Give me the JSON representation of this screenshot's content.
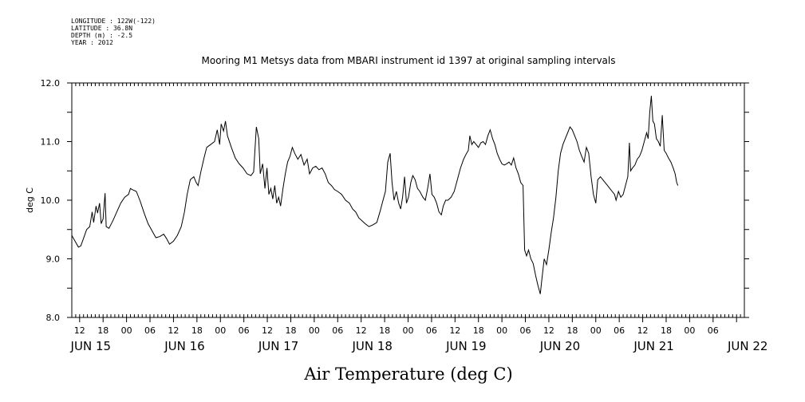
{
  "metadata": [
    "LONGITUDE : 122W(-122)",
    "LATITUDE : 36.8N",
    "DEPTH (m) : -2.5",
    "YEAR : 2012"
  ],
  "chart_data": {
    "type": "line",
    "title": "Mooring M1 Metsys data from MBARI instrument id 1397 at original sampling intervals",
    "xlabel": "Air Temperature (deg C)",
    "ylabel": "deg C",
    "ylim": [
      8.0,
      12.0
    ],
    "yticks": [
      "8.0",
      "9.0",
      "10.0",
      "11.0",
      "12.0"
    ],
    "xlim_hours": [
      346,
      518
    ],
    "hour_ticks": [
      "12",
      "18",
      "00",
      "06",
      "12",
      "18",
      "00",
      "06",
      "12",
      "18",
      "00",
      "06",
      "12",
      "18",
      "00",
      "06",
      "12",
      "18",
      "00",
      "06",
      "12",
      "18",
      "00",
      "06",
      "12",
      "18",
      "00",
      "06"
    ],
    "day_labels": [
      "JUN 15",
      "JUN 16",
      "JUN 17",
      "JUN 18",
      "JUN 19",
      "JUN 20",
      "JUN 21",
      "JUN 22"
    ],
    "grid": false,
    "series": [
      {
        "x_unit": "hours since JUN 1 2012 00:00",
        "color": "#000000",
        "points": [
          [
            346.0,
            9.4
          ],
          [
            347.0,
            9.28
          ],
          [
            347.7,
            9.2
          ],
          [
            348.3,
            9.22
          ],
          [
            349.0,
            9.35
          ],
          [
            349.8,
            9.5
          ],
          [
            350.6,
            9.55
          ],
          [
            351.2,
            9.8
          ],
          [
            351.6,
            9.62
          ],
          [
            352.2,
            9.9
          ],
          [
            352.6,
            9.78
          ],
          [
            353.1,
            9.95
          ],
          [
            353.5,
            9.6
          ],
          [
            354.0,
            9.68
          ],
          [
            354.5,
            10.12
          ],
          [
            354.8,
            9.55
          ],
          [
            355.5,
            9.52
          ],
          [
            356.5,
            9.65
          ],
          [
            357.5,
            9.8
          ],
          [
            358.5,
            9.95
          ],
          [
            359.5,
            10.05
          ],
          [
            360.5,
            10.1
          ],
          [
            361.0,
            10.2
          ],
          [
            361.5,
            10.18
          ],
          [
            362.5,
            10.15
          ],
          [
            363.5,
            9.98
          ],
          [
            364.5,
            9.78
          ],
          [
            365.5,
            9.6
          ],
          [
            366.5,
            9.48
          ],
          [
            367.5,
            9.36
          ],
          [
            368.5,
            9.38
          ],
          [
            369.5,
            9.42
          ],
          [
            370.2,
            9.35
          ],
          [
            371.0,
            9.25
          ],
          [
            372.0,
            9.3
          ],
          [
            373.0,
            9.4
          ],
          [
            374.0,
            9.55
          ],
          [
            374.8,
            9.8
          ],
          [
            375.5,
            10.1
          ],
          [
            376.3,
            10.35
          ],
          [
            377.2,
            10.4
          ],
          [
            377.8,
            10.3
          ],
          [
            378.3,
            10.25
          ],
          [
            379.0,
            10.48
          ],
          [
            379.8,
            10.72
          ],
          [
            380.5,
            10.9
          ],
          [
            381.5,
            10.95
          ],
          [
            382.5,
            11.0
          ],
          [
            383.2,
            11.2
          ],
          [
            383.8,
            10.95
          ],
          [
            384.2,
            11.3
          ],
          [
            384.8,
            11.18
          ],
          [
            385.3,
            11.35
          ],
          [
            385.8,
            11.1
          ],
          [
            386.8,
            10.9
          ],
          [
            387.8,
            10.72
          ],
          [
            388.8,
            10.62
          ],
          [
            389.8,
            10.55
          ],
          [
            390.8,
            10.45
          ],
          [
            391.8,
            10.42
          ],
          [
            392.5,
            10.48
          ],
          [
            393.2,
            11.25
          ],
          [
            393.8,
            11.05
          ],
          [
            394.2,
            10.45
          ],
          [
            394.8,
            10.62
          ],
          [
            395.4,
            10.2
          ],
          [
            395.9,
            10.55
          ],
          [
            396.4,
            10.1
          ],
          [
            396.9,
            10.2
          ],
          [
            397.4,
            10.02
          ],
          [
            397.9,
            10.25
          ],
          [
            398.4,
            9.95
          ],
          [
            398.9,
            10.05
          ],
          [
            399.4,
            9.9
          ],
          [
            400.0,
            10.2
          ],
          [
            400.6,
            10.45
          ],
          [
            401.2,
            10.65
          ],
          [
            401.8,
            10.75
          ],
          [
            402.4,
            10.9
          ],
          [
            403.0,
            10.8
          ],
          [
            403.8,
            10.7
          ],
          [
            404.6,
            10.78
          ],
          [
            405.4,
            10.6
          ],
          [
            406.2,
            10.7
          ],
          [
            406.8,
            10.45
          ],
          [
            407.6,
            10.55
          ],
          [
            408.4,
            10.58
          ],
          [
            409.2,
            10.52
          ],
          [
            410.0,
            10.55
          ],
          [
            410.8,
            10.45
          ],
          [
            411.6,
            10.3
          ],
          [
            412.4,
            10.25
          ],
          [
            413.2,
            10.18
          ],
          [
            414.0,
            10.15
          ],
          [
            415.0,
            10.1
          ],
          [
            416.0,
            10.0
          ],
          [
            417.0,
            9.95
          ],
          [
            417.8,
            9.85
          ],
          [
            418.6,
            9.8
          ],
          [
            419.4,
            9.7
          ],
          [
            420.2,
            9.65
          ],
          [
            421.0,
            9.6
          ],
          [
            422.0,
            9.55
          ],
          [
            423.0,
            9.58
          ],
          [
            424.0,
            9.62
          ],
          [
            424.8,
            9.8
          ],
          [
            425.6,
            10.0
          ],
          [
            426.2,
            10.15
          ],
          [
            426.8,
            10.65
          ],
          [
            427.4,
            10.8
          ],
          [
            427.9,
            10.3
          ],
          [
            428.4,
            10.0
          ],
          [
            429.0,
            10.15
          ],
          [
            429.6,
            9.95
          ],
          [
            430.1,
            9.85
          ],
          [
            430.6,
            10.05
          ],
          [
            431.1,
            10.4
          ],
          [
            431.6,
            9.95
          ],
          [
            432.1,
            10.05
          ],
          [
            432.7,
            10.3
          ],
          [
            433.2,
            10.42
          ],
          [
            433.8,
            10.35
          ],
          [
            434.4,
            10.2
          ],
          [
            435.0,
            10.15
          ],
          [
            435.8,
            10.05
          ],
          [
            436.4,
            10.0
          ],
          [
            437.0,
            10.2
          ],
          [
            437.6,
            10.45
          ],
          [
            438.1,
            10.1
          ],
          [
            438.7,
            10.05
          ],
          [
            439.3,
            9.95
          ],
          [
            439.9,
            9.8
          ],
          [
            440.5,
            9.75
          ],
          [
            441.0,
            9.9
          ],
          [
            441.6,
            10.0
          ],
          [
            442.2,
            10.0
          ],
          [
            443.0,
            10.05
          ],
          [
            443.8,
            10.15
          ],
          [
            444.6,
            10.35
          ],
          [
            445.4,
            10.55
          ],
          [
            446.2,
            10.7
          ],
          [
            446.8,
            10.78
          ],
          [
            447.4,
            10.85
          ],
          [
            447.8,
            11.1
          ],
          [
            448.3,
            10.95
          ],
          [
            448.8,
            11.0
          ],
          [
            449.4,
            10.95
          ],
          [
            450.0,
            10.9
          ],
          [
            450.6,
            10.98
          ],
          [
            451.2,
            11.0
          ],
          [
            451.8,
            10.95
          ],
          [
            452.4,
            11.1
          ],
          [
            453.0,
            11.2
          ],
          [
            453.6,
            11.05
          ],
          [
            454.2,
            10.95
          ],
          [
            454.8,
            10.8
          ],
          [
            455.4,
            10.7
          ],
          [
            456.0,
            10.62
          ],
          [
            456.6,
            10.6
          ],
          [
            457.2,
            10.62
          ],
          [
            457.8,
            10.65
          ],
          [
            458.4,
            10.6
          ],
          [
            459.0,
            10.72
          ],
          [
            459.6,
            10.55
          ],
          [
            460.2,
            10.45
          ],
          [
            460.8,
            10.3
          ],
          [
            461.4,
            10.25
          ],
          [
            461.8,
            9.15
          ],
          [
            462.3,
            9.05
          ],
          [
            462.8,
            9.15
          ],
          [
            463.4,
            9.0
          ],
          [
            464.0,
            8.92
          ],
          [
            464.6,
            8.72
          ],
          [
            465.2,
            8.55
          ],
          [
            465.8,
            8.4
          ],
          [
            466.3,
            8.7
          ],
          [
            466.8,
            9.0
          ],
          [
            467.4,
            8.9
          ],
          [
            468.0,
            9.15
          ],
          [
            468.6,
            9.45
          ],
          [
            469.2,
            9.7
          ],
          [
            469.8,
            10.05
          ],
          [
            470.4,
            10.5
          ],
          [
            471.0,
            10.8
          ],
          [
            471.6,
            10.95
          ],
          [
            472.2,
            11.05
          ],
          [
            472.8,
            11.15
          ],
          [
            473.4,
            11.25
          ],
          [
            474.0,
            11.2
          ],
          [
            474.6,
            11.1
          ],
          [
            475.2,
            11.0
          ],
          [
            475.8,
            10.85
          ],
          [
            476.4,
            10.75
          ],
          [
            477.0,
            10.65
          ],
          [
            477.6,
            10.9
          ],
          [
            478.2,
            10.8
          ],
          [
            478.8,
            10.4
          ],
          [
            479.4,
            10.1
          ],
          [
            480.0,
            9.95
          ],
          [
            480.5,
            10.35
          ],
          [
            481.2,
            10.4
          ],
          [
            481.8,
            10.35
          ],
          [
            482.4,
            10.3
          ],
          [
            483.0,
            10.25
          ],
          [
            483.6,
            10.2
          ],
          [
            484.2,
            10.15
          ],
          [
            484.8,
            10.1
          ],
          [
            485.2,
            10.0
          ],
          [
            485.8,
            10.15
          ],
          [
            486.4,
            10.05
          ],
          [
            487.0,
            10.1
          ],
          [
            487.6,
            10.25
          ],
          [
            488.2,
            10.4
          ],
          [
            488.6,
            10.98
          ],
          [
            488.9,
            10.5
          ],
          [
            489.4,
            10.55
          ],
          [
            490.0,
            10.6
          ],
          [
            490.6,
            10.7
          ],
          [
            491.2,
            10.75
          ],
          [
            491.8,
            10.85
          ],
          [
            492.4,
            11.0
          ],
          [
            493.0,
            11.15
          ],
          [
            493.4,
            11.05
          ],
          [
            493.8,
            11.5
          ],
          [
            494.2,
            11.78
          ],
          [
            494.6,
            11.35
          ],
          [
            495.0,
            11.3
          ],
          [
            495.5,
            11.05
          ],
          [
            496.0,
            11.0
          ],
          [
            496.5,
            10.92
          ],
          [
            497.0,
            11.45
          ],
          [
            497.5,
            10.85
          ],
          [
            498.0,
            10.8
          ],
          [
            498.6,
            10.72
          ],
          [
            499.2,
            10.65
          ],
          [
            499.8,
            10.55
          ],
          [
            500.3,
            10.45
          ],
          [
            500.7,
            10.3
          ],
          [
            501.0,
            10.25
          ]
        ]
      }
    ]
  }
}
